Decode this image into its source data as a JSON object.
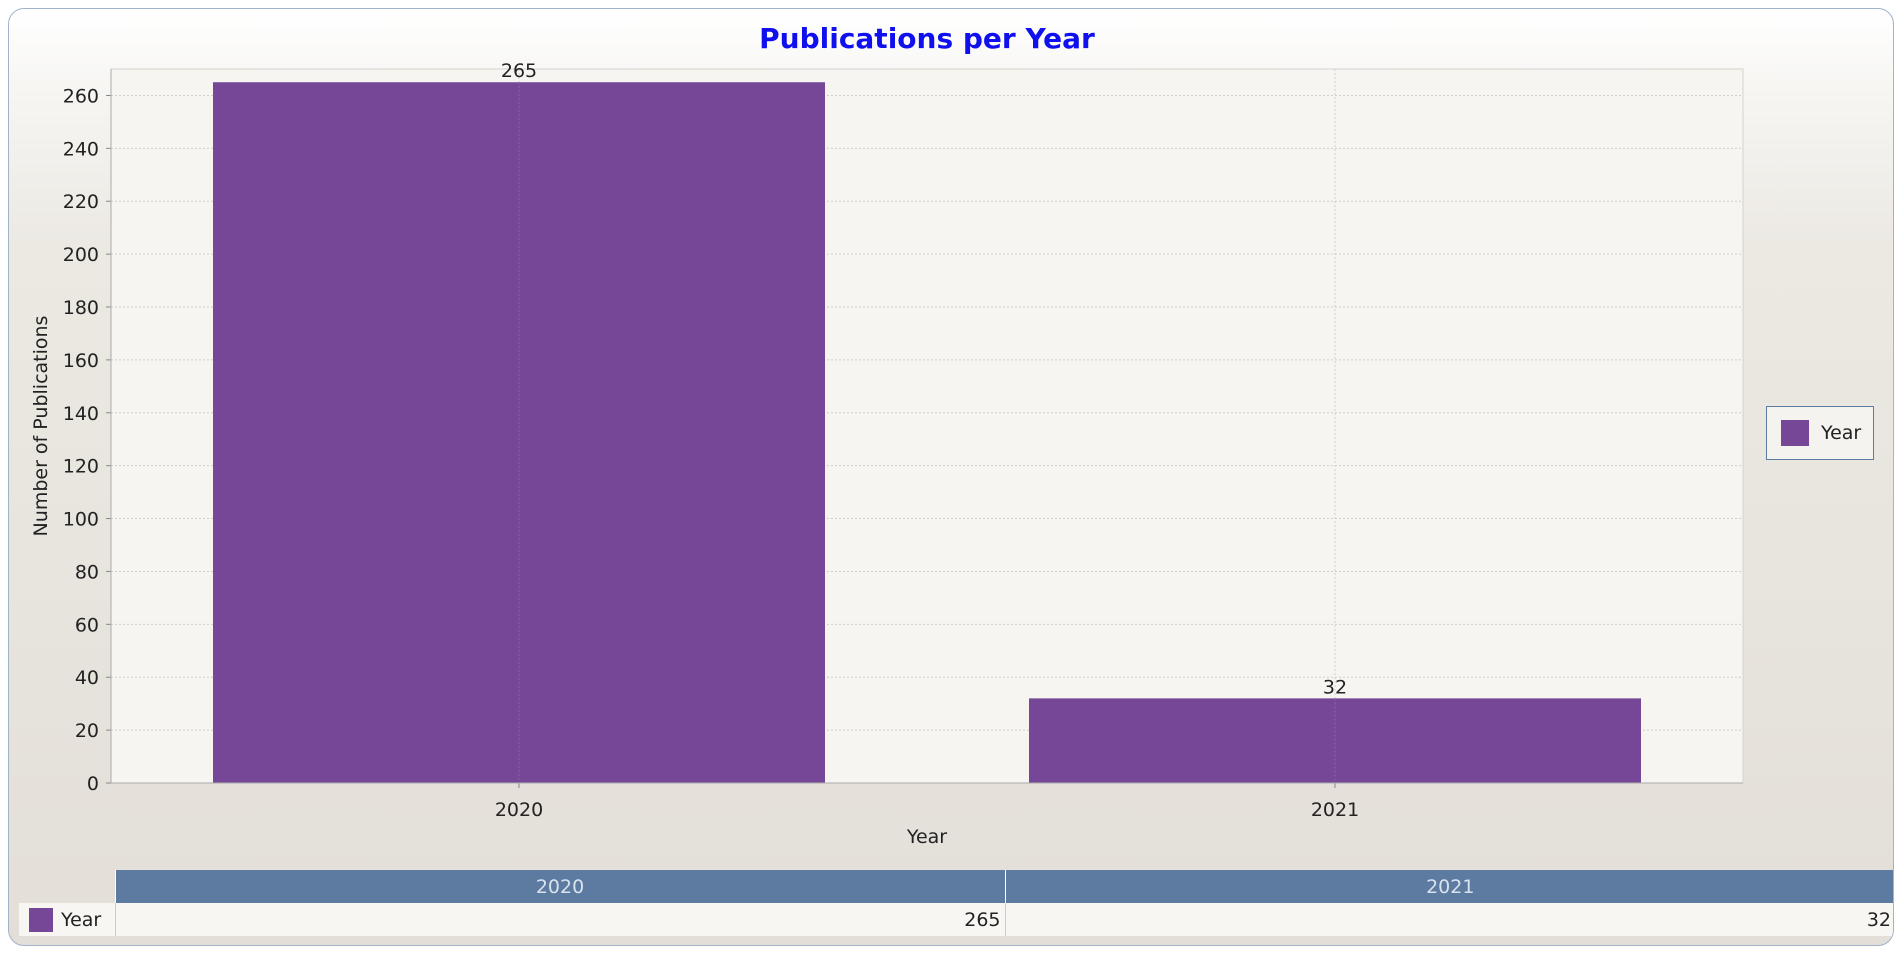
{
  "colors": {
    "bar": "#774797",
    "title": "#1010ee",
    "header": "#5d7aa0",
    "plot_bg": "#f6f5f1"
  },
  "chart_data": {
    "type": "bar",
    "title": "Publications per Year",
    "xlabel": "Year",
    "ylabel": "Number of Publications",
    "categories": [
      "2020",
      "2021"
    ],
    "series": [
      {
        "name": "Year",
        "values": [
          265,
          32
        ]
      }
    ],
    "ylim": [
      0,
      270
    ],
    "yticks": [
      0,
      20,
      40,
      60,
      80,
      100,
      120,
      140,
      160,
      180,
      200,
      220,
      240,
      260
    ],
    "ytick_labels": [
      "0",
      "20",
      "40",
      "60",
      "80",
      "100",
      "120",
      "140",
      "160",
      "180",
      "200",
      "220",
      "240",
      "260"
    ],
    "data_labels": [
      "265",
      "32"
    ],
    "grid": true,
    "legend": "right"
  },
  "legend": {
    "label": "Year"
  },
  "table": {
    "headers": [
      "2020",
      "2021"
    ],
    "row_label": "Year",
    "values": [
      "265",
      "32"
    ]
  }
}
